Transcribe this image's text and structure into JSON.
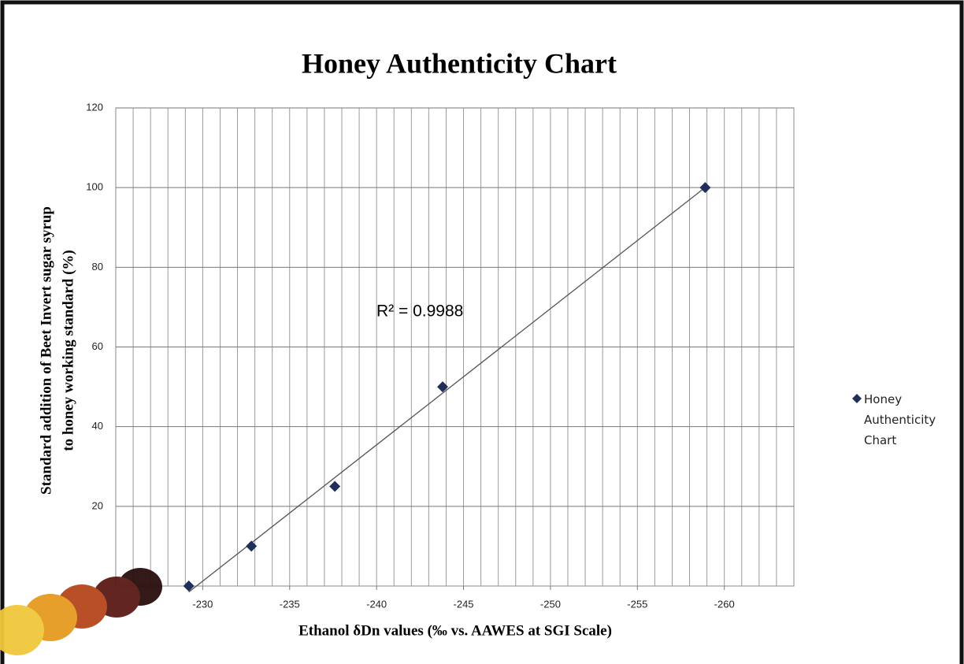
{
  "chart_data": {
    "type": "scatter",
    "title": "Honey Authenticity Chart",
    "x_label": "Ethanol δDn values (‰ vs. AAWES at SGI Scale)",
    "y_label": [
      "Standard addition of Beet Invert sugar syrup",
      "to honey working standard (%)"
    ],
    "annotation": "R² = 0.9988",
    "series": [
      {
        "name": "Honey Authenticity Chart",
        "color": "#1f2f5a",
        "x": [
          -229.2,
          -232.8,
          -237.6,
          -243.8,
          -258.9
        ],
        "values": [
          0,
          10,
          25,
          50,
          100
        ]
      }
    ],
    "trendline": true,
    "xlim": [
      -225,
      -264
    ],
    "xticks": [
      -230,
      -235,
      -240,
      -245,
      -250,
      -255,
      -260
    ],
    "ylim": [
      0,
      120
    ],
    "yticks": [
      20,
      40,
      60,
      80,
      100,
      120
    ],
    "grid": true,
    "legend": "right"
  }
}
